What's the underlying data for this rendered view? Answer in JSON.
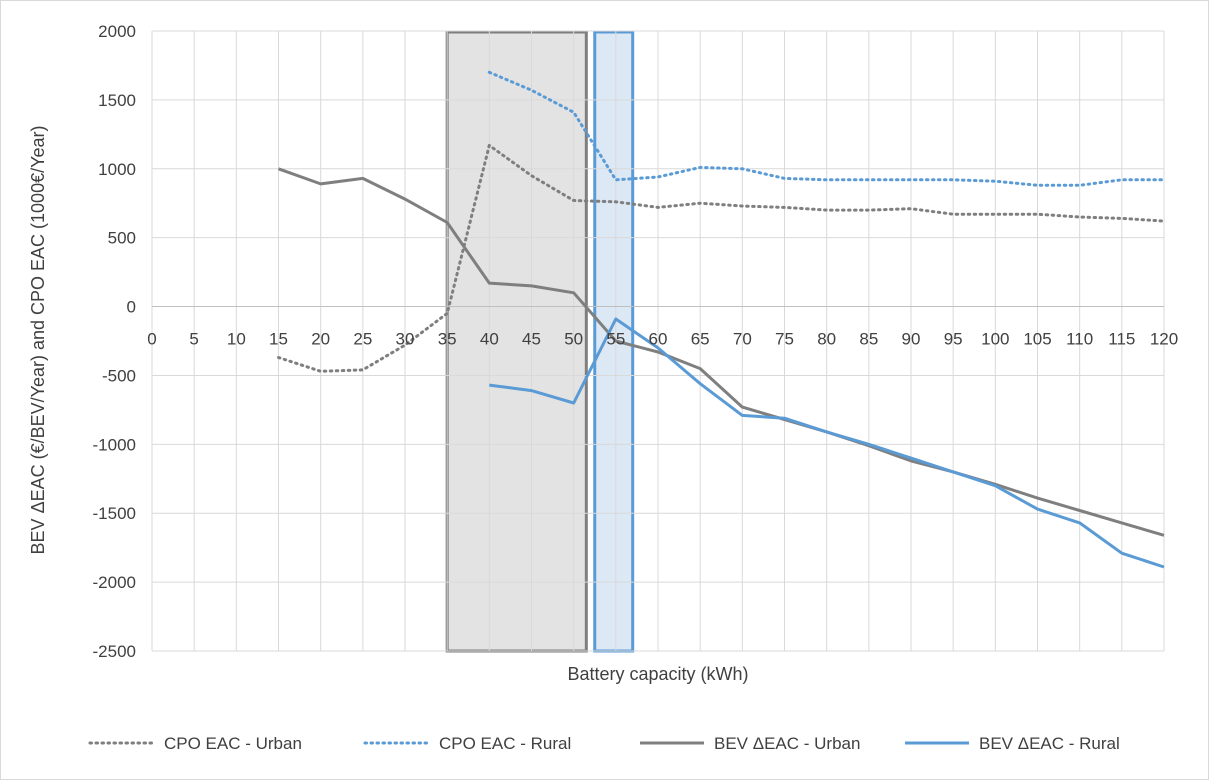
{
  "chart_data": {
    "type": "line",
    "xlabel": "Battery capacity (kWh)",
    "ylabel": "BEV ΔEAC (€/BEV/Year) and CPO EAC (1000€/Year)",
    "xlim": [
      0,
      120
    ],
    "ylim": [
      -2500,
      2000
    ],
    "x_ticks": [
      0,
      5,
      10,
      15,
      20,
      25,
      30,
      35,
      40,
      45,
      50,
      55,
      60,
      65,
      70,
      75,
      80,
      85,
      90,
      95,
      100,
      105,
      110,
      115,
      120
    ],
    "y_ticks": [
      -2500,
      -2000,
      -1500,
      -1000,
      -500,
      0,
      500,
      1000,
      1500,
      2000
    ],
    "grid": true,
    "legend_position": "bottom",
    "highlight_ranges": [
      {
        "x0": 35,
        "x1": 51.5,
        "fill": "#e3e3e3",
        "stroke": "#7f7f7f"
      },
      {
        "x0": 52.5,
        "x1": 57,
        "fill": "#dde8f5",
        "stroke": "#5b9bd5"
      }
    ],
    "series": [
      {
        "name": "CPO EAC - Urban",
        "color": "#7f7f7f",
        "dash": "dotted",
        "x": [
          15,
          20,
          25,
          30,
          35,
          40,
          45,
          50,
          55,
          60,
          65,
          70,
          75,
          80,
          85,
          90,
          95,
          100,
          105,
          110,
          115,
          120
        ],
        "y": [
          -370,
          -470,
          -460,
          -280,
          -50,
          1170,
          950,
          770,
          760,
          720,
          750,
          730,
          720,
          700,
          700,
          710,
          670,
          670,
          670,
          650,
          640,
          620
        ]
      },
      {
        "name": "CPO EAC - Rural",
        "color": "#5b9bd5",
        "dash": "dotted",
        "x": [
          40,
          45,
          50,
          55,
          60,
          65,
          70,
          75,
          80,
          85,
          90,
          95,
          100,
          105,
          110,
          115,
          120
        ],
        "y": [
          1700,
          1570,
          1410,
          920,
          940,
          1010,
          1000,
          930,
          920,
          920,
          920,
          920,
          910,
          880,
          880,
          920,
          920
        ]
      },
      {
        "name": "BEV ΔEAC - Urban",
        "color": "#7f7f7f",
        "dash": "solid",
        "x": [
          15,
          20,
          25,
          30,
          35,
          40,
          45,
          50,
          55,
          60,
          65,
          70,
          75,
          80,
          85,
          90,
          95,
          100,
          105,
          110,
          115,
          120
        ],
        "y": [
          1000,
          890,
          930,
          780,
          610,
          170,
          150,
          100,
          -250,
          -330,
          -450,
          -730,
          -820,
          -910,
          -1010,
          -1120,
          -1200,
          -1290,
          -1390,
          -1480,
          -1570,
          -1660
        ]
      },
      {
        "name": "BEV ΔEAC - Rural",
        "color": "#5b9bd5",
        "dash": "solid",
        "x": [
          40,
          45,
          50,
          55,
          60,
          65,
          70,
          75,
          80,
          85,
          90,
          95,
          100,
          105,
          110,
          115,
          120
        ],
        "y": [
          -570,
          -610,
          -700,
          -90,
          -300,
          -560,
          -790,
          -810,
          -910,
          -1000,
          -1100,
          -1200,
          -1300,
          -1470,
          -1570,
          -1790,
          -1890
        ]
      }
    ]
  }
}
